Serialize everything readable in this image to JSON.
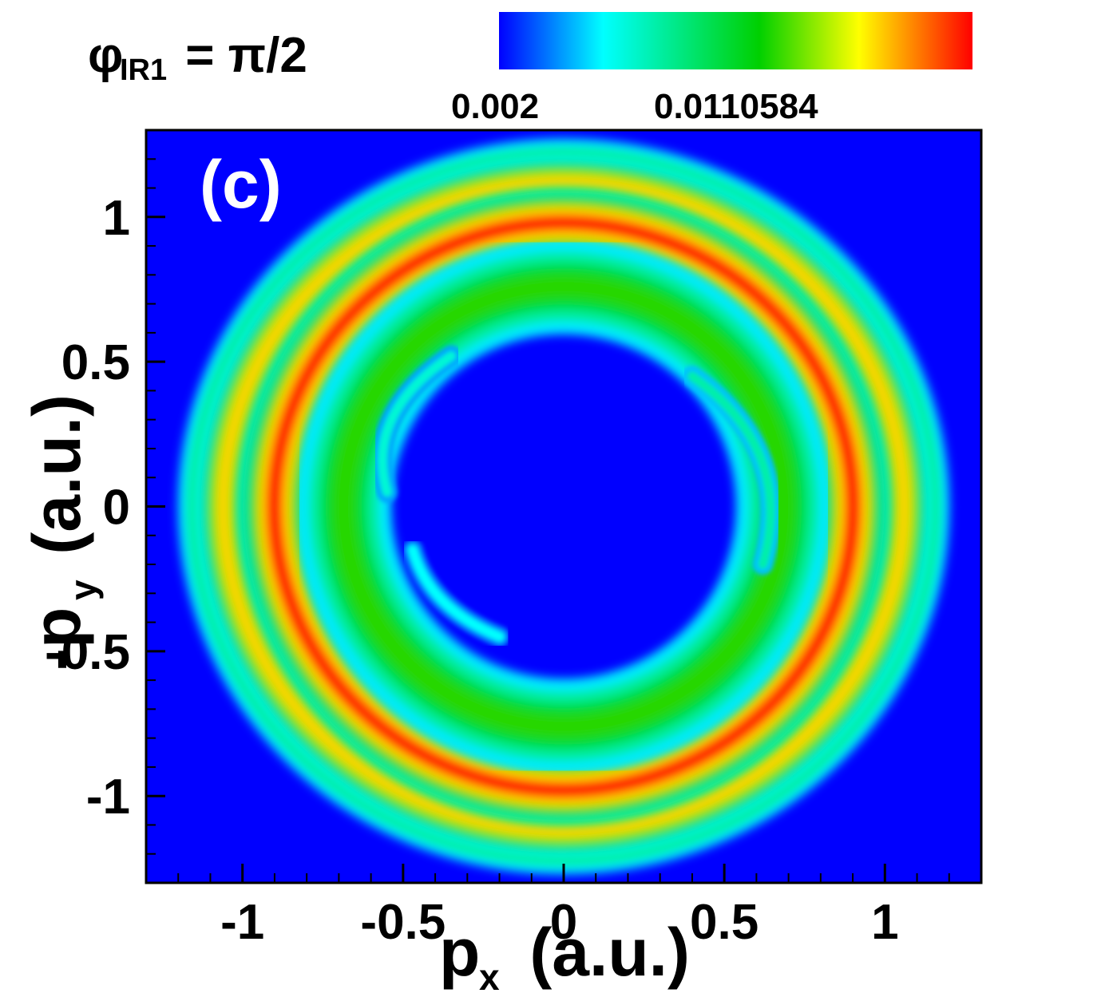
{
  "chart_data": {
    "type": "heatmap",
    "title_parts": {
      "symbol": "φ",
      "subscript": "IR1",
      "rest": " = π/2"
    },
    "panel_label": "(c)",
    "xlabel": {
      "main": "p",
      "sub": "x",
      "rest": " (a.u.)"
    },
    "ylabel": {
      "main": "-p",
      "sub": "y",
      "rest": " (a.u.)"
    },
    "xlim": [
      -1.3,
      1.3
    ],
    "ylim": [
      -1.3,
      1.3
    ],
    "x_ticks": [
      -1,
      -0.5,
      0,
      0.5,
      1
    ],
    "x_tick_labels": [
      "-1",
      "-0.5",
      "0",
      "0.5",
      "1"
    ],
    "y_ticks": [
      1,
      0.5,
      0,
      -0.5,
      -1
    ],
    "y_tick_labels": [
      "1",
      "0.5",
      "0",
      "-0.5",
      "-1"
    ],
    "colorbar": {
      "tick_values": [
        0.002,
        0.0110584
      ],
      "tick_labels": [
        "0.002",
        "0.0110584"
      ],
      "range": [
        0.002,
        0.0201
      ],
      "colormap": [
        "#0000ff",
        "#00ffff",
        "#00d000",
        "#ffff00",
        "#ff8000",
        "#ff0000"
      ]
    },
    "background_value": 0.002,
    "features": [
      {
        "kind": "ring",
        "center": [
          0.0,
          0.0
        ],
        "radius": 1.22,
        "width": 0.05,
        "peak": 0.0085,
        "rx_scale": 1.05
      },
      {
        "kind": "ring",
        "center": [
          0.0,
          0.0
        ],
        "radius": 1.12,
        "width": 0.08,
        "peak": 0.0165,
        "rx_scale": 1.05
      },
      {
        "kind": "ring",
        "center": [
          0.0,
          0.0
        ],
        "radius": 0.98,
        "width": 0.11,
        "peak": 0.0195,
        "rx_scale": 1.02
      },
      {
        "kind": "ring",
        "center": [
          0.0,
          0.0
        ],
        "radius": 0.76,
        "width": 0.15,
        "peak": 0.0125,
        "rx_scale": 1.0
      },
      {
        "kind": "arc",
        "center": [
          -0.55,
          0.2
        ],
        "note": "faint inner arc",
        "peak": 0.007
      },
      {
        "kind": "arc",
        "center": [
          0.55,
          0.1
        ],
        "note": "inner right arc",
        "peak": 0.008
      },
      {
        "kind": "arc",
        "center": [
          -0.45,
          -0.3
        ],
        "note": "faint lower-left arc",
        "peak": 0.006
      }
    ]
  }
}
